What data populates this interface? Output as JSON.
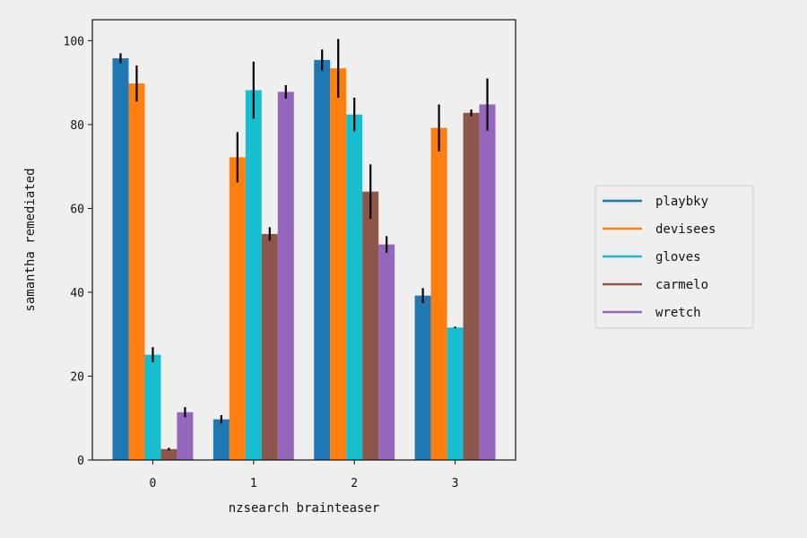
{
  "chart_data": {
    "type": "bar",
    "title": "",
    "xlabel": "nzsearch brainteaser",
    "ylabel": "samantha remediated",
    "categories": [
      "0",
      "1",
      "2",
      "3"
    ],
    "ylim": [
      0,
      105
    ],
    "yticks": [
      0,
      20,
      40,
      60,
      80,
      100
    ],
    "grid": false,
    "legend_position": "right",
    "series": [
      {
        "name": "playbky",
        "color": "#1f77b4",
        "values": [
          95.8,
          9.7,
          95.4,
          39.2
        ],
        "errors": [
          1.2,
          1.0,
          2.5,
          1.8
        ]
      },
      {
        "name": "devisees",
        "color": "#ff7f0e",
        "values": [
          89.8,
          72.2,
          93.4,
          79.2
        ],
        "errors": [
          4.3,
          6.0,
          7.0,
          5.6
        ]
      },
      {
        "name": "gloves",
        "color": "#17becf",
        "values": [
          25.1,
          88.2,
          82.4,
          31.6
        ],
        "errors": [
          1.8,
          6.8,
          4.0,
          0.2
        ]
      },
      {
        "name": "carmelo",
        "color": "#8c564b",
        "values": [
          2.6,
          53.9,
          64.0,
          82.8
        ],
        "errors": [
          0.3,
          1.6,
          6.5,
          0.8
        ]
      },
      {
        "name": "wretch",
        "color": "#9467bd",
        "values": [
          11.4,
          87.8,
          51.4,
          84.8
        ],
        "errors": [
          1.2,
          1.6,
          2.0,
          6.2
        ]
      }
    ]
  }
}
